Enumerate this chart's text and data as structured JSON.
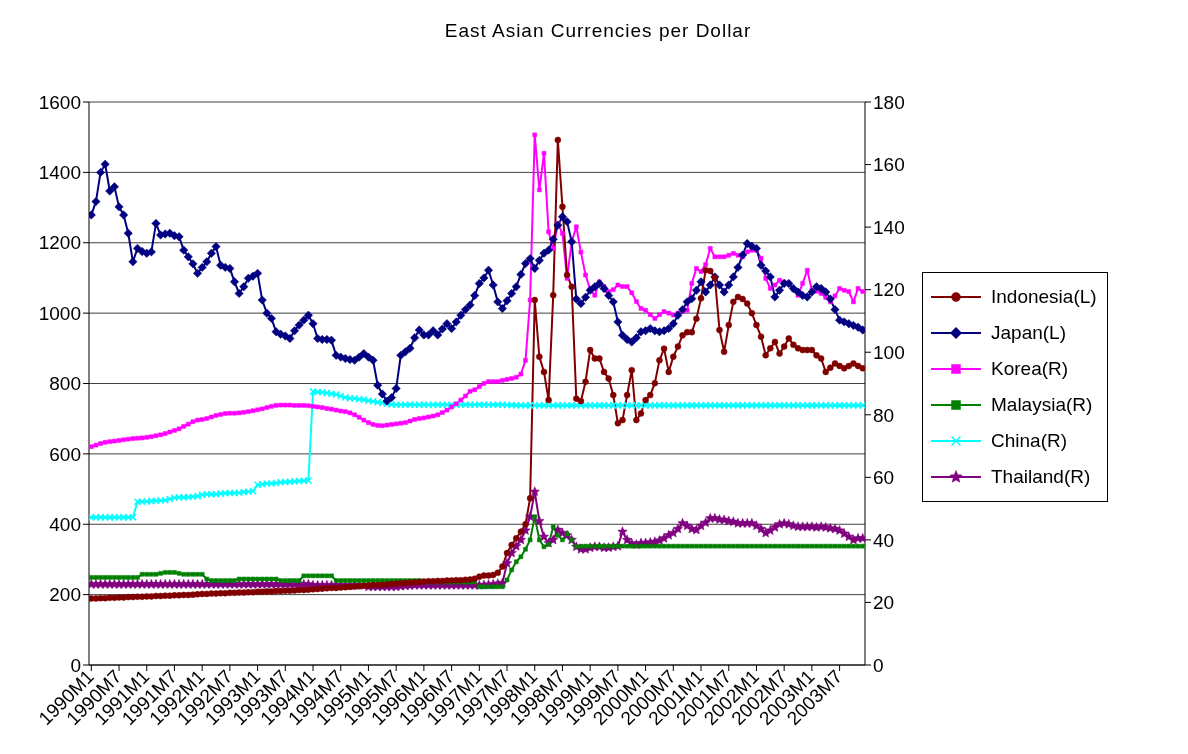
{
  "chart_data": {
    "type": "line",
    "title": "East Asian Currencies per Dollar",
    "categories": [
      "1990M1",
      null,
      null,
      null,
      null,
      null,
      "1990M7",
      null,
      null,
      null,
      null,
      null,
      "1991M1",
      null,
      null,
      null,
      null,
      null,
      "1991M7",
      null,
      null,
      null,
      null,
      null,
      "1992M1",
      null,
      null,
      null,
      null,
      null,
      "1992M7",
      null,
      null,
      null,
      null,
      null,
      "1993M1",
      null,
      null,
      null,
      null,
      null,
      "1993M7",
      null,
      null,
      null,
      null,
      null,
      "1994M1",
      null,
      null,
      null,
      null,
      null,
      "1994M7",
      null,
      null,
      null,
      null,
      null,
      "1995M1",
      null,
      null,
      null,
      null,
      null,
      "1995M7",
      null,
      null,
      null,
      null,
      null,
      "1996M1",
      null,
      null,
      null,
      null,
      null,
      "1996M7",
      null,
      null,
      null,
      null,
      null,
      "1997M1",
      null,
      null,
      null,
      null,
      null,
      "1997M7",
      null,
      null,
      null,
      null,
      null,
      "1998M1",
      null,
      null,
      null,
      null,
      null,
      "1998M7",
      null,
      null,
      null,
      null,
      null,
      "1999M1",
      null,
      null,
      null,
      null,
      null,
      "1999M7",
      null,
      null,
      null,
      null,
      null,
      "2000M1",
      null,
      null,
      null,
      null,
      null,
      "2000M7",
      null,
      null,
      null,
      null,
      null,
      "2001M1",
      null,
      null,
      null,
      null,
      null,
      "2001M7",
      null,
      null,
      null,
      null,
      null,
      "2002M1",
      null,
      null,
      null,
      null,
      null,
      "2002M7",
      null,
      null,
      null,
      null,
      null,
      "2003M1",
      null,
      null,
      null,
      null,
      null,
      "2003M7",
      null,
      null,
      null,
      null,
      null
    ],
    "ylim": [
      0,
      1600
    ],
    "yticks": [
      0,
      200,
      400,
      600,
      800,
      1000,
      1200,
      1400,
      1600
    ],
    "y2lim": [
      0,
      180
    ],
    "y2ticks": [
      0,
      20,
      40,
      60,
      80,
      100,
      120,
      140,
      160,
      180
    ],
    "grid": "y",
    "legend": "right",
    "series": [
      {
        "name": "Indonesia(L)",
        "color": "#800000",
        "marker": "circle",
        "values": [
          189,
          189,
          190,
          190,
          191,
          191,
          192,
          192,
          193,
          193,
          194,
          194,
          195,
          195,
          196,
          196,
          197,
          197,
          198,
          198,
          199,
          199,
          200,
          201,
          202,
          202,
          203,
          203,
          204,
          204,
          205,
          205,
          206,
          206,
          207,
          207,
          208,
          208,
          209,
          209,
          210,
          210,
          211,
          211,
          212,
          213,
          213,
          214,
          215,
          216,
          217,
          218,
          219,
          219,
          220,
          221,
          222,
          223,
          224,
          225,
          226,
          227,
          227,
          228,
          229,
          230,
          231,
          232,
          233,
          234,
          235,
          236,
          237,
          238,
          238,
          239,
          239,
          240,
          240,
          241,
          241,
          242,
          243,
          245,
          251,
          254,
          254,
          256,
          262,
          280,
          318,
          341,
          360,
          379,
          400,
          474,
          1037,
          876,
          833,
          753,
          1051,
          1492,
          1302,
          1108,
          1075,
          757,
          750,
          805,
          895,
          871,
          871,
          833,
          814,
          767,
          687,
          696,
          767,
          838,
          696,
          715,
          753,
          767,
          801,
          866,
          899,
          833,
          876,
          905,
          937,
          946,
          946,
          984,
          1042,
          1122,
          1120,
          1100,
          952,
          890,
          966,
          1032,
          1046,
          1040,
          1027,
          1000,
          966,
          933,
          880,
          900,
          918,
          885,
          905,
          928,
          910,
          900,
          895,
          895,
          895,
          880,
          871,
          833,
          845,
          857,
          850,
          843,
          850,
          857,
          850,
          843
        ]
      },
      {
        "name": "Japan(L)",
        "color": "#000080",
        "marker": "diamond",
        "values": [
          1279,
          1317,
          1400,
          1423,
          1347,
          1359,
          1302,
          1279,
          1227,
          1146,
          1184,
          1175,
          1170,
          1174,
          1255,
          1222,
          1225,
          1227,
          1220,
          1217,
          1179,
          1160,
          1140,
          1113,
          1130,
          1146,
          1170,
          1189,
          1136,
          1130,
          1127,
          1089,
          1056,
          1075,
          1099,
          1105,
          1113,
          1037,
          1000,
          985,
          947,
          940,
          935,
          928,
          950,
          966,
          980,
          994,
          970,
          928,
          925,
          925,
          923,
          880,
          875,
          871,
          868,
          866,
          875,
          885,
          875,
          866,
          795,
          770,
          750,
          760,
          786,
          880,
          890,
          900,
          930,
          952,
          938,
          938,
          950,
          938,
          955,
          970,
          956,
          975,
          994,
          1010,
          1023,
          1050,
          1084,
          1100,
          1122,
          1080,
          1032,
          1013,
          1035,
          1056,
          1075,
          1110,
          1141,
          1155,
          1127,
          1150,
          1170,
          1179,
          1210,
          1250,
          1274,
          1260,
          1203,
          1040,
          1027,
          1045,
          1065,
          1075,
          1084,
          1070,
          1050,
          1032,
          975,
          937,
          925,
          918,
          930,
          947,
          950,
          956,
          950,
          947,
          950,
          956,
          970,
          994,
          1010,
          1032,
          1041,
          1065,
          1089,
          1060,
          1080,
          1103,
          1080,
          1060,
          1080,
          1103,
          1130,
          1165,
          1198,
          1190,
          1184,
          1136,
          1120,
          1103,
          1046,
          1065,
          1084,
          1084,
          1070,
          1060,
          1050,
          1046,
          1060,
          1075,
          1070,
          1060,
          1040,
          1010,
          980,
          975,
          970,
          965,
          960,
          952
        ]
      },
      {
        "name": "Korea(R)",
        "color": "#ff00ff",
        "marker": "square",
        "axis": "y2",
        "values": [
          69.8,
          70.3,
          70.8,
          71.2,
          71.4,
          71.6,
          71.8,
          72,
          72.2,
          72.4,
          72.5,
          72.6,
          72.8,
          73,
          73.3,
          73.6,
          74,
          74.5,
          75,
          75.5,
          76.3,
          77,
          77.8,
          78.3,
          78.5,
          78.8,
          79.3,
          79.8,
          80.1,
          80.4,
          80.5,
          80.5,
          80.6,
          80.8,
          81,
          81.3,
          81.6,
          81.9,
          82.3,
          82.7,
          83,
          83.1,
          83.1,
          83.1,
          83,
          83,
          83,
          82.9,
          82.7,
          82.5,
          82.3,
          82,
          81.8,
          81.5,
          81.2,
          81,
          80.6,
          80,
          79.2,
          78.3,
          77.5,
          76.9,
          76.6,
          76.5,
          76.7,
          76.9,
          77.1,
          77.3,
          77.5,
          78,
          78.5,
          78.8,
          79,
          79.3,
          79.6,
          80,
          80.7,
          81.5,
          82.5,
          83.5,
          84.7,
          86,
          87.5,
          88,
          89,
          90,
          90.6,
          90.6,
          90.6,
          91,
          91.3,
          91.6,
          92,
          93,
          97.4,
          116.7,
          169.5,
          151.9,
          163.6,
          138.5,
          133.2,
          141.2,
          138,
          123.6,
          135.3,
          140.1,
          132,
          124.7,
          120,
          118.2,
          122.5,
          121,
          119.4,
          120,
          121.5,
          121,
          121,
          119,
          116.2,
          114,
          113.4,
          112,
          110.8,
          112,
          113,
          112.5,
          111.9,
          112.5,
          113,
          113.4,
          122,
          126.8,
          125.8,
          128,
          133.2,
          130.5,
          130.5,
          130.5,
          131,
          131.6,
          131,
          130.5,
          132.1,
          132.6,
          132.6,
          130,
          123.6,
          120.4,
          121.5,
          123,
          122.5,
          122,
          120,
          118.2,
          122,
          126.2,
          119.8,
          119.5,
          118.8,
          117.5,
          116.1,
          118,
          120.4,
          119.8,
          119.4,
          116.1,
          120.4,
          119.4
        ]
      },
      {
        "name": "Malaysia(R)",
        "color": "#008000",
        "marker": "square",
        "axis": "y2",
        "values": [
          28,
          28,
          28,
          28,
          28,
          28,
          28,
          28,
          28,
          28,
          28,
          29,
          29,
          29,
          29,
          29.3,
          29.6,
          29.6,
          29.6,
          29.3,
          29,
          29,
          29,
          29,
          29,
          27.5,
          27,
          27,
          27,
          27,
          27,
          27,
          27.5,
          27.5,
          27.5,
          27.5,
          27.5,
          27.5,
          27.5,
          27.5,
          27.5,
          27,
          27,
          27,
          27,
          27,
          28.5,
          28.5,
          28.5,
          28.5,
          28.5,
          28.5,
          28.5,
          27,
          27,
          27,
          27,
          27,
          27,
          27,
          27,
          27,
          27,
          27,
          27,
          27,
          27,
          27,
          27,
          27,
          27,
          27,
          26.5,
          26.5,
          26.5,
          26.5,
          26.5,
          26.5,
          26.5,
          26.5,
          26.5,
          26.5,
          26.5,
          26.5,
          25,
          25,
          25,
          25,
          25,
          25,
          27.2,
          30.4,
          33,
          34.6,
          37,
          40,
          47.4,
          40,
          37.8,
          38.5,
          44.2,
          41.5,
          40,
          42,
          40,
          37.8,
          38,
          38,
          38,
          38,
          38,
          38,
          38,
          38,
          38,
          38,
          38,
          38,
          38,
          38,
          38,
          38,
          38,
          38,
          38,
          38,
          38,
          38,
          38,
          38,
          38,
          38,
          38,
          38,
          38,
          38,
          38,
          38,
          38,
          38,
          38,
          38,
          38,
          38,
          38,
          38,
          38,
          38,
          38,
          38,
          38,
          38,
          38,
          38,
          38,
          38,
          38,
          38,
          38,
          38,
          38,
          38,
          38,
          38,
          38,
          38,
          38,
          38
        ]
      },
      {
        "name": "China(R)",
        "color": "#00ffff",
        "marker": "cross",
        "axis": "y2",
        "values": [
          47.2,
          47.2,
          47.2,
          47.2,
          47.2,
          47.2,
          47.2,
          47.2,
          47.2,
          47.2,
          52.2,
          52.2,
          52.3,
          52.4,
          52.5,
          52.6,
          52.7,
          53.1,
          53.5,
          53.6,
          53.6,
          53.7,
          53.8,
          54,
          54.4,
          54.6,
          54.6,
          54.6,
          54.8,
          54.9,
          55,
          55,
          55.1,
          55.3,
          55.4,
          55.6,
          57.6,
          57.8,
          58,
          58,
          58.2,
          58.4,
          58.5,
          58.6,
          58.7,
          58.8,
          58.9,
          59,
          87.4,
          87.3,
          87.2,
          87,
          86.7,
          86.5,
          86,
          85.5,
          85.3,
          85.2,
          85,
          84.8,
          84.5,
          84.3,
          84,
          83.8,
          83.5,
          83.3,
          83.2,
          83.2,
          83.2,
          83.2,
          83.2,
          83.2,
          83.2,
          83.2,
          83.2,
          83.2,
          83.2,
          83.2,
          83.2,
          83.2,
          83.2,
          83.2,
          83.2,
          83.2,
          83.2,
          83.2,
          83.2,
          83.2,
          83.2,
          83.2,
          83.1,
          83.1,
          83,
          83,
          83,
          83,
          83,
          83,
          83,
          83,
          83,
          83,
          83,
          83,
          83,
          83,
          83,
          83,
          83,
          83,
          83,
          83,
          83,
          83,
          83,
          83,
          83,
          83,
          83,
          83,
          83,
          83,
          83,
          83,
          83,
          83,
          83,
          83,
          83,
          83,
          83,
          83,
          83,
          83,
          83,
          83,
          83,
          83,
          83,
          83,
          83,
          83,
          83,
          83,
          83,
          83,
          83,
          83,
          83,
          83,
          83,
          83,
          83,
          83,
          83,
          83,
          83,
          83,
          83,
          83,
          83,
          83,
          83,
          83,
          83,
          83,
          83,
          83
        ]
      },
      {
        "name": "Thailand(R)",
        "color": "#800080",
        "marker": "star",
        "axis": "y2",
        "values": [
          25.8,
          25.8,
          25.8,
          25.8,
          25.8,
          25.8,
          25.8,
          25.8,
          25.8,
          25.8,
          25.8,
          25.8,
          25.8,
          25.8,
          25.8,
          25.8,
          25.8,
          25.8,
          25.8,
          25.8,
          25.8,
          25.8,
          25.8,
          25.8,
          25.8,
          25.8,
          25.8,
          25.8,
          25.8,
          25.8,
          25.8,
          25.8,
          25.8,
          25.8,
          25.8,
          25.8,
          25.8,
          25.8,
          25.8,
          25.8,
          25.8,
          25.8,
          25.8,
          25.8,
          25.8,
          25.8,
          25.8,
          25.8,
          25.5,
          25.5,
          25.5,
          25.5,
          25.5,
          25.5,
          25.5,
          25.5,
          25.5,
          25.5,
          25.5,
          25.5,
          25,
          25,
          25,
          25,
          25,
          25,
          25,
          25.2,
          25.3,
          25.4,
          25.5,
          25.5,
          25.5,
          25.5,
          25.5,
          25.5,
          25.5,
          25.5,
          25.5,
          25.5,
          25.5,
          25.5,
          25.5,
          25.5,
          25.5,
          25.6,
          25.7,
          25.8,
          26,
          26.2,
          32.5,
          35.8,
          38,
          40,
          43,
          47.4,
          55.4,
          46,
          41,
          39,
          40,
          43.2,
          42.2,
          41.5,
          40,
          37.8,
          37,
          37,
          37.5,
          37.8,
          37.8,
          37.5,
          37.5,
          37.8,
          38,
          42.6,
          40,
          38.9,
          38.5,
          39,
          39,
          39.2,
          39.4,
          39.8,
          40.5,
          41.5,
          42.2,
          43.5,
          45.3,
          44.5,
          43.5,
          43.2,
          44.5,
          45.5,
          46.9,
          46.9,
          46.5,
          46.4,
          46,
          45.8,
          45.3,
          45.3,
          45.3,
          45.3,
          44.5,
          43.5,
          42.2,
          43,
          44,
          45,
          45.3,
          45,
          44.5,
          44.2,
          44.2,
          44.2,
          44.2,
          44,
          44.2,
          44,
          43.7,
          43.5,
          43,
          42,
          41,
          40,
          40.5,
          40.5
        ]
      }
    ]
  }
}
